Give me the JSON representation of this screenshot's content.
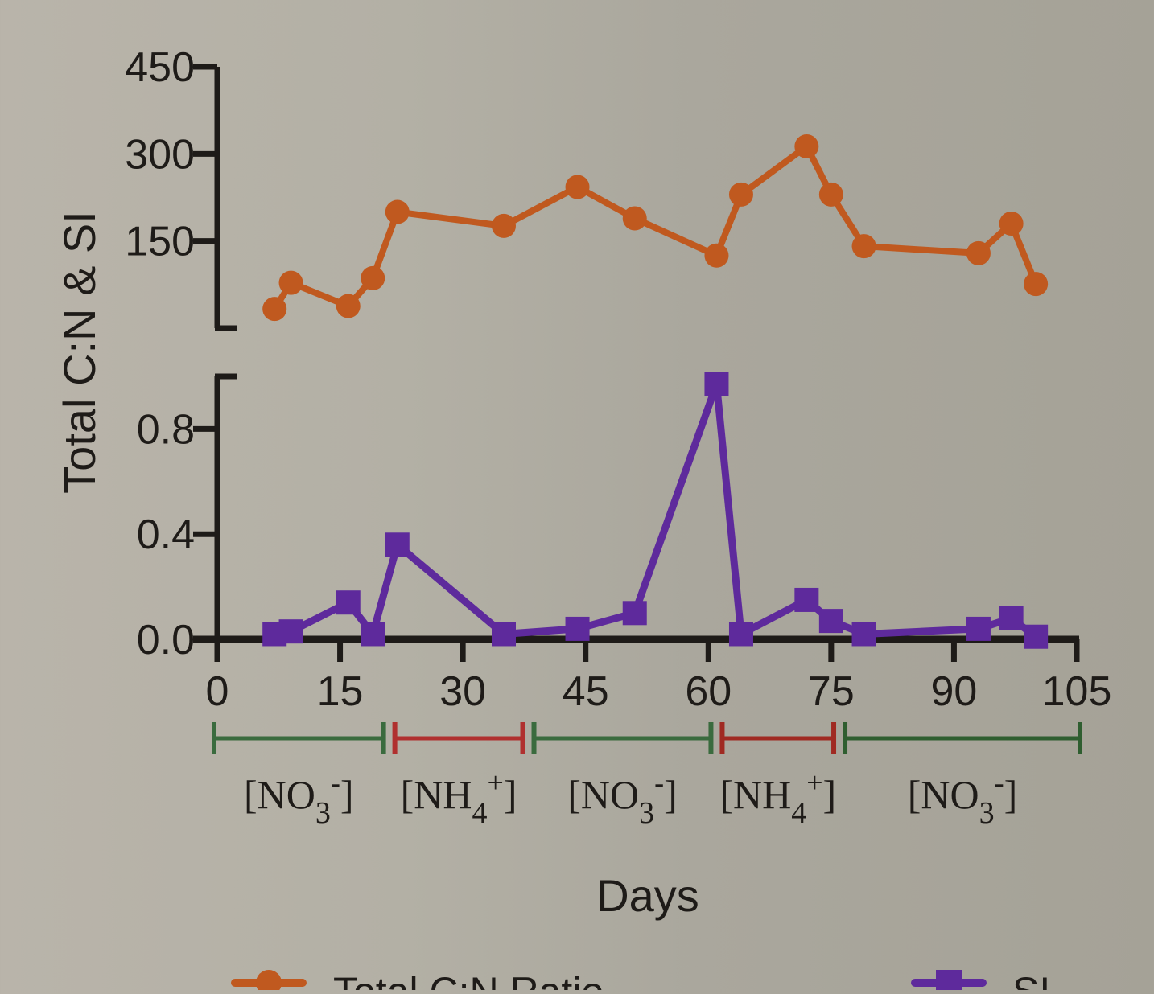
{
  "chart_data": {
    "type": "line",
    "xlabel": "Days",
    "ylabel": "Total C:N & SI",
    "xlim": [
      0,
      105
    ],
    "x_ticks": [
      "0",
      "15",
      "30",
      "45",
      "60",
      "75",
      "90",
      "105"
    ],
    "grid": false,
    "legend_placement": "bottom",
    "panels": [
      {
        "name": "upper",
        "ylim": [
          0,
          450
        ],
        "y_ticks": [
          "150",
          "300",
          "450"
        ],
        "series": [
          {
            "name": "Total C:N Ratio",
            "color": "#c0591f",
            "marker": "circle",
            "x": [
              7,
              9,
              16,
              19,
              22,
              35,
              44,
              51,
              61,
              64,
              72,
              75,
              79,
              93,
              97,
              100
            ],
            "y": [
              33,
              78,
              38,
              86,
              200,
              176,
              243,
              189,
              125,
              230,
              313,
              230,
              141,
              129,
              180,
              76
            ]
          }
        ]
      },
      {
        "name": "lower",
        "ylim": [
          0,
          1.0
        ],
        "y_ticks": [
          "0.0",
          "0.4",
          "0.8"
        ],
        "series": [
          {
            "name": "SI",
            "color": "#5e2a9c",
            "marker": "square",
            "x": [
              7,
              9,
              16,
              19,
              22,
              35,
              44,
              51,
              61,
              64,
              72,
              75,
              79,
              93,
              97,
              100
            ],
            "y": [
              0.02,
              0.03,
              0.14,
              0.02,
              0.36,
              0.02,
              0.04,
              0.1,
              0.97,
              0.02,
              0.15,
              0.07,
              0.02,
              0.04,
              0.08,
              0.01
            ]
          }
        ]
      }
    ],
    "phases": [
      {
        "start": 0,
        "end": 21,
        "label": "[NO",
        "sub": "3",
        "sup": "-",
        "color": "#3a6b3e"
      },
      {
        "start": 21,
        "end": 38,
        "label": "[NH",
        "sub": "4",
        "sup": "+",
        "color": "#b0302f"
      },
      {
        "start": 38,
        "end": 61,
        "label": "[NO",
        "sub": "3",
        "sup": "-",
        "color": "#3a6b3e"
      },
      {
        "start": 61,
        "end": 76,
        "label": "[NH",
        "sub": "4",
        "sup": "+",
        "color": "#a02a22"
      },
      {
        "start": 76,
        "end": 105,
        "label": "[NO",
        "sub": "3",
        "sup": "-",
        "color": "#2f5e30"
      }
    ],
    "legend": [
      "Total C:N Ratio",
      "SI"
    ]
  }
}
